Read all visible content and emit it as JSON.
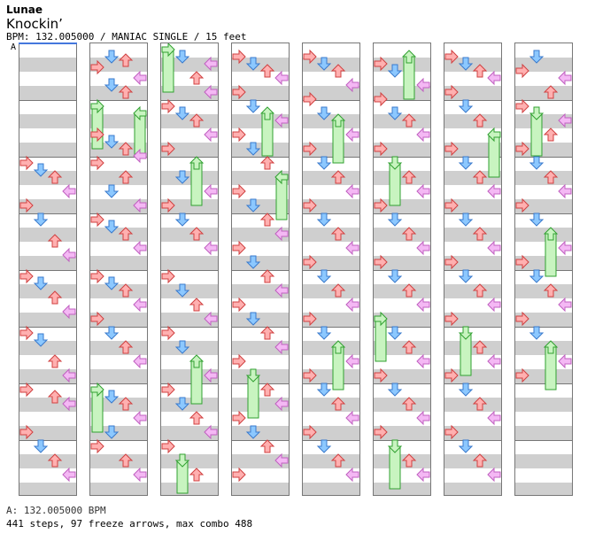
{
  "header": {
    "artist": "Lunae",
    "title": "Knockin’",
    "info": "BPM: 132.005000 / MANIAC SINGLE / 15 feet"
  },
  "bpm_marker_label": "A",
  "footer": {
    "bpm_line": "A: 132.005000 BPM",
    "stats_line": "441 steps, 97 freeze arrows, max combo 488"
  },
  "colors": {
    "left": "#ffb0b0",
    "down": "#8cc8ff",
    "up": "#ffb0b0",
    "right": "#f4b8f4",
    "freeze": "#c8f4c0",
    "stripe": "#cfcfcf"
  },
  "chart_data": {
    "type": "scatter",
    "lanes": [
      "left",
      "down",
      "up",
      "right"
    ],
    "columns": 8,
    "measures_per_column": 8,
    "rows_per_measure": 16,
    "summary": {
      "steps": 441,
      "freeze_arrows": 97,
      "max_combo": 488
    },
    "notes": [
      [
        [
          32,
          0,
          ""
        ],
        [
          34,
          1,
          ""
        ],
        [
          36,
          2,
          ""
        ],
        [
          40,
          3,
          ""
        ],
        [
          44,
          0,
          ""
        ],
        [
          48,
          1,
          ""
        ],
        [
          54,
          2,
          ""
        ],
        [
          58,
          3,
          ""
        ],
        [
          64,
          0,
          ""
        ],
        [
          66,
          1,
          ""
        ],
        [
          70,
          2,
          ""
        ],
        [
          74,
          3,
          ""
        ],
        [
          80,
          0,
          ""
        ],
        [
          82,
          1,
          ""
        ],
        [
          88,
          2,
          ""
        ],
        [
          92,
          3,
          ""
        ],
        [
          96,
          0,
          ""
        ],
        [
          98,
          2,
          ""
        ],
        [
          100,
          3,
          ""
        ],
        [
          108,
          0,
          ""
        ],
        [
          112,
          1,
          ""
        ],
        [
          116,
          2,
          ""
        ],
        [
          120,
          3,
          ""
        ]
      ],
      [
        [
          2,
          1,
          ""
        ],
        [
          3,
          2,
          ""
        ],
        [
          5,
          0,
          ""
        ],
        [
          8,
          3,
          ""
        ],
        [
          10,
          1,
          ""
        ],
        [
          12,
          2,
          ""
        ],
        [
          16,
          0,
          "f"
        ],
        [
          18,
          3,
          "f"
        ],
        [
          24,
          0,
          ""
        ],
        [
          26,
          1,
          ""
        ],
        [
          28,
          2,
          ""
        ],
        [
          30,
          3,
          ""
        ],
        [
          32,
          0,
          ""
        ],
        [
          36,
          2,
          ""
        ],
        [
          40,
          1,
          ""
        ],
        [
          44,
          3,
          ""
        ],
        [
          48,
          0,
          ""
        ],
        [
          50,
          1,
          ""
        ],
        [
          52,
          2,
          ""
        ],
        [
          56,
          3,
          ""
        ],
        [
          64,
          0,
          ""
        ],
        [
          66,
          1,
          ""
        ],
        [
          68,
          2,
          ""
        ],
        [
          72,
          3,
          ""
        ],
        [
          76,
          0,
          ""
        ],
        [
          80,
          1,
          ""
        ],
        [
          84,
          2,
          ""
        ],
        [
          88,
          3,
          ""
        ],
        [
          96,
          0,
          "f"
        ],
        [
          98,
          1,
          ""
        ],
        [
          100,
          2,
          ""
        ],
        [
          104,
          3,
          ""
        ],
        [
          108,
          1,
          ""
        ],
        [
          112,
          0,
          ""
        ],
        [
          116,
          2,
          ""
        ],
        [
          120,
          3,
          ""
        ]
      ],
      [
        [
          0,
          0,
          "f"
        ],
        [
          2,
          1,
          ""
        ],
        [
          4,
          3,
          ""
        ],
        [
          8,
          2,
          ""
        ],
        [
          12,
          3,
          ""
        ],
        [
          16,
          0,
          ""
        ],
        [
          18,
          1,
          ""
        ],
        [
          20,
          2,
          ""
        ],
        [
          24,
          3,
          ""
        ],
        [
          28,
          0,
          ""
        ],
        [
          32,
          2,
          "f"
        ],
        [
          36,
          1,
          ""
        ],
        [
          40,
          3,
          ""
        ],
        [
          44,
          0,
          ""
        ],
        [
          48,
          1,
          ""
        ],
        [
          52,
          2,
          ""
        ],
        [
          56,
          3,
          ""
        ],
        [
          64,
          0,
          ""
        ],
        [
          68,
          1,
          ""
        ],
        [
          72,
          2,
          ""
        ],
        [
          76,
          3,
          ""
        ],
        [
          80,
          0,
          ""
        ],
        [
          84,
          1,
          ""
        ],
        [
          88,
          2,
          "f"
        ],
        [
          92,
          3,
          ""
        ],
        [
          96,
          0,
          ""
        ],
        [
          100,
          1,
          ""
        ],
        [
          104,
          2,
          ""
        ],
        [
          108,
          3,
          ""
        ],
        [
          112,
          0,
          ""
        ],
        [
          116,
          1,
          "f"
        ],
        [
          120,
          2,
          ""
        ]
      ],
      [
        [
          2,
          0,
          ""
        ],
        [
          4,
          1,
          ""
        ],
        [
          6,
          2,
          ""
        ],
        [
          8,
          3,
          ""
        ],
        [
          12,
          0,
          ""
        ],
        [
          16,
          1,
          ""
        ],
        [
          18,
          2,
          "f"
        ],
        [
          20,
          3,
          ""
        ],
        [
          24,
          0,
          ""
        ],
        [
          28,
          1,
          ""
        ],
        [
          32,
          2,
          ""
        ],
        [
          36,
          3,
          "f"
        ],
        [
          40,
          0,
          ""
        ],
        [
          44,
          1,
          ""
        ],
        [
          48,
          2,
          ""
        ],
        [
          52,
          3,
          ""
        ],
        [
          56,
          0,
          ""
        ],
        [
          60,
          1,
          ""
        ],
        [
          64,
          2,
          ""
        ],
        [
          68,
          3,
          ""
        ],
        [
          72,
          0,
          ""
        ],
        [
          76,
          1,
          ""
        ],
        [
          80,
          2,
          ""
        ],
        [
          84,
          3,
          ""
        ],
        [
          88,
          0,
          ""
        ],
        [
          92,
          1,
          "f"
        ],
        [
          96,
          2,
          ""
        ],
        [
          100,
          3,
          ""
        ],
        [
          104,
          0,
          ""
        ],
        [
          108,
          1,
          ""
        ],
        [
          112,
          2,
          ""
        ],
        [
          116,
          3,
          ""
        ],
        [
          120,
          0,
          ""
        ]
      ],
      [
        [
          2,
          0,
          ""
        ],
        [
          4,
          1,
          ""
        ],
        [
          6,
          2,
          ""
        ],
        [
          10,
          3,
          ""
        ],
        [
          14,
          0,
          ""
        ],
        [
          18,
          1,
          ""
        ],
        [
          20,
          2,
          "f"
        ],
        [
          24,
          3,
          ""
        ],
        [
          28,
          0,
          ""
        ],
        [
          32,
          1,
          ""
        ],
        [
          36,
          2,
          ""
        ],
        [
          40,
          3,
          ""
        ],
        [
          44,
          0,
          ""
        ],
        [
          48,
          1,
          ""
        ],
        [
          52,
          2,
          ""
        ],
        [
          56,
          3,
          ""
        ],
        [
          60,
          0,
          ""
        ],
        [
          64,
          1,
          ""
        ],
        [
          68,
          2,
          ""
        ],
        [
          72,
          3,
          ""
        ],
        [
          76,
          0,
          ""
        ],
        [
          80,
          1,
          ""
        ],
        [
          84,
          2,
          "f"
        ],
        [
          88,
          3,
          ""
        ],
        [
          92,
          0,
          ""
        ],
        [
          96,
          1,
          ""
        ],
        [
          100,
          2,
          ""
        ],
        [
          104,
          3,
          ""
        ],
        [
          108,
          0,
          ""
        ],
        [
          112,
          1,
          ""
        ],
        [
          116,
          2,
          ""
        ],
        [
          120,
          3,
          ""
        ]
      ],
      [
        [
          2,
          2,
          "f"
        ],
        [
          4,
          0,
          ""
        ],
        [
          6,
          1,
          ""
        ],
        [
          10,
          3,
          ""
        ],
        [
          14,
          0,
          ""
        ],
        [
          18,
          1,
          ""
        ],
        [
          20,
          2,
          ""
        ],
        [
          24,
          3,
          ""
        ],
        [
          28,
          0,
          ""
        ],
        [
          32,
          1,
          "f"
        ],
        [
          36,
          2,
          ""
        ],
        [
          40,
          3,
          ""
        ],
        [
          44,
          0,
          ""
        ],
        [
          48,
          1,
          ""
        ],
        [
          52,
          2,
          ""
        ],
        [
          56,
          3,
          ""
        ],
        [
          60,
          0,
          ""
        ],
        [
          64,
          1,
          ""
        ],
        [
          68,
          2,
          ""
        ],
        [
          72,
          3,
          ""
        ],
        [
          76,
          0,
          "f"
        ],
        [
          80,
          1,
          ""
        ],
        [
          84,
          2,
          ""
        ],
        [
          88,
          3,
          ""
        ],
        [
          92,
          0,
          ""
        ],
        [
          96,
          1,
          ""
        ],
        [
          100,
          2,
          ""
        ],
        [
          104,
          3,
          ""
        ],
        [
          108,
          0,
          ""
        ],
        [
          112,
          1,
          "f"
        ],
        [
          116,
          2,
          ""
        ],
        [
          120,
          3,
          ""
        ]
      ],
      [
        [
          2,
          0,
          ""
        ],
        [
          4,
          1,
          ""
        ],
        [
          6,
          2,
          ""
        ],
        [
          8,
          3,
          ""
        ],
        [
          12,
          0,
          ""
        ],
        [
          16,
          1,
          ""
        ],
        [
          20,
          2,
          ""
        ],
        [
          24,
          3,
          "f"
        ],
        [
          28,
          0,
          ""
        ],
        [
          32,
          1,
          ""
        ],
        [
          36,
          2,
          ""
        ],
        [
          40,
          3,
          ""
        ],
        [
          44,
          0,
          ""
        ],
        [
          48,
          1,
          ""
        ],
        [
          52,
          2,
          ""
        ],
        [
          56,
          3,
          ""
        ],
        [
          60,
          0,
          ""
        ],
        [
          64,
          1,
          ""
        ],
        [
          68,
          2,
          ""
        ],
        [
          72,
          3,
          ""
        ],
        [
          76,
          0,
          ""
        ],
        [
          80,
          1,
          "f"
        ],
        [
          84,
          2,
          ""
        ],
        [
          88,
          3,
          ""
        ],
        [
          92,
          0,
          ""
        ],
        [
          96,
          1,
          ""
        ],
        [
          100,
          2,
          ""
        ],
        [
          104,
          3,
          ""
        ],
        [
          108,
          0,
          ""
        ],
        [
          112,
          1,
          ""
        ],
        [
          116,
          2,
          ""
        ],
        [
          120,
          3,
          ""
        ]
      ],
      [
        [
          2,
          1,
          ""
        ],
        [
          6,
          0,
          ""
        ],
        [
          8,
          3,
          ""
        ],
        [
          12,
          2,
          ""
        ],
        [
          16,
          0,
          ""
        ],
        [
          18,
          1,
          "f"
        ],
        [
          20,
          3,
          ""
        ],
        [
          24,
          2,
          ""
        ],
        [
          28,
          0,
          ""
        ],
        [
          32,
          1,
          ""
        ],
        [
          36,
          2,
          ""
        ],
        [
          40,
          3,
          ""
        ],
        [
          44,
          0,
          ""
        ],
        [
          48,
          1,
          ""
        ],
        [
          52,
          2,
          "f"
        ],
        [
          56,
          3,
          ""
        ],
        [
          60,
          0,
          ""
        ],
        [
          64,
          1,
          ""
        ],
        [
          68,
          2,
          ""
        ],
        [
          72,
          3,
          ""
        ],
        [
          76,
          0,
          ""
        ],
        [
          80,
          1,
          ""
        ],
        [
          84,
          2,
          "f"
        ],
        [
          88,
          3,
          ""
        ],
        [
          92,
          0,
          ""
        ]
      ]
    ]
  }
}
